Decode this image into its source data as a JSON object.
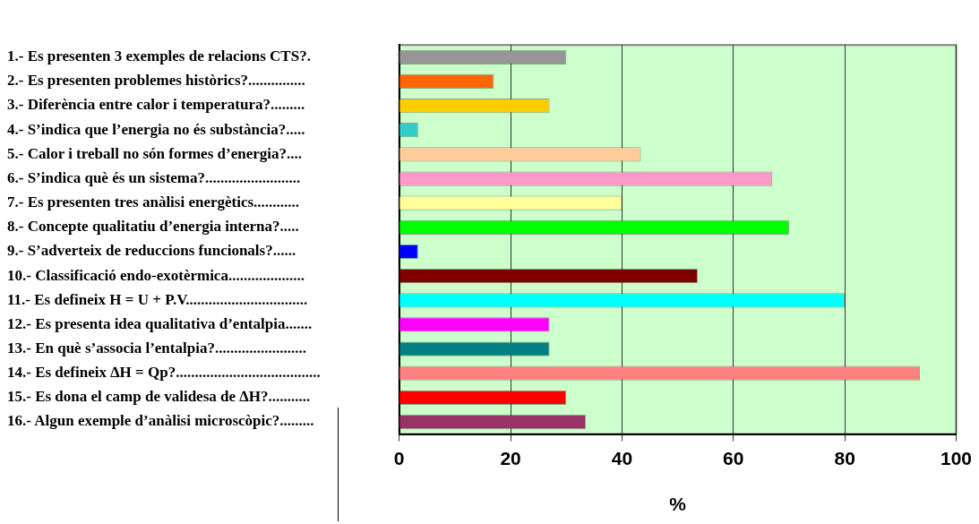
{
  "chart_data": {
    "type": "bar",
    "orientation": "horizontal",
    "xlabel": "%",
    "categories": [
      "1.- Es presenten 3 exemples de relacions CTS?.",
      "2.- Es presenten problemes històrics?...............",
      "3.- Diferència entre calor i temperatura?.........",
      "4.- S’indica que l’energia no és substància?.....",
      "5.- Calor i treball no són formes d’energia?....",
      "6.- S’indica què és un sistema?.........................",
      "7.- Es presenten tres anàlisi energètics............",
      "8.- Concepte qualitatiu d’energia interna?.....",
      "9.- S’adverteix de reduccions funcionals?......",
      "10.- Classificació endo-exotèrmica....................",
      "11.- Es defineix H = U + P.V................................",
      "12.- Es presenta idea qualitativa d’entalpia.......",
      "13.- En què s’associa l’entalpia?........................",
      "14.- Es defineix ∆H = Qp?......................................",
      "15.- Es dona el camp de validesa de ∆H?...........",
      "16.- Algun exemple d’anàlisi microscòpic?........."
    ],
    "values": [
      30,
      17,
      27,
      3.4,
      43.4,
      67,
      40,
      70,
      3.4,
      53.6,
      80,
      27,
      27,
      93.5,
      30,
      33.5
    ],
    "colors": [
      "#969696",
      "#ff6600",
      "#ffcc00",
      "#33cccc",
      "#ffcc99",
      "#ff99cc",
      "#ffff99",
      "#00ff00",
      "#0000ff",
      "#800000",
      "#00ffff",
      "#ff00ff",
      "#008080",
      "#ff8080",
      "#ff0000",
      "#993366"
    ],
    "xlim": [
      0,
      100
    ],
    "xticks": [
      0,
      20,
      40,
      60,
      80,
      100
    ],
    "grid": "x",
    "legend": false
  }
}
